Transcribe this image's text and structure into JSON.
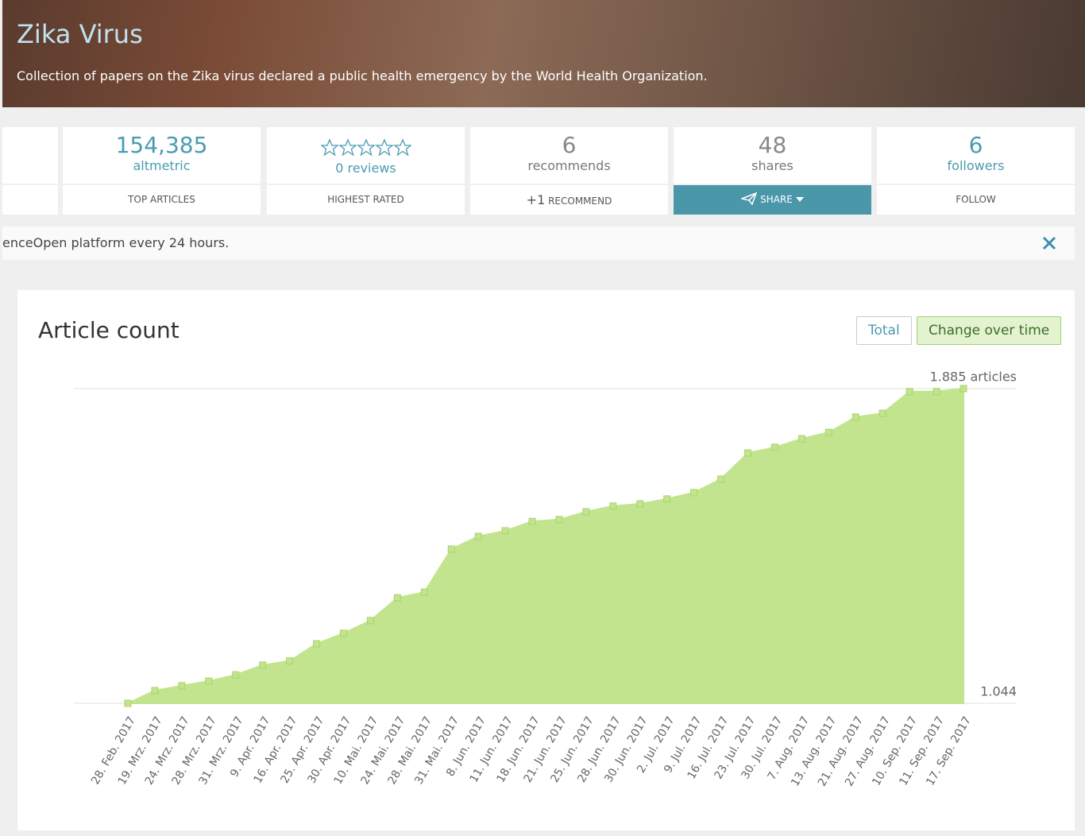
{
  "header": {
    "title": "Zika Virus",
    "description": "Collection of papers on the Zika virus declared a public health emergency by the World Health Organization."
  },
  "stats": [
    {
      "value": "154,385",
      "label": "altmetric",
      "action": "TOP ARTICLES"
    },
    {
      "label": "0 reviews",
      "action": "HIGHEST RATED"
    },
    {
      "value": "6",
      "label": "recommends",
      "action_prefix": "+1",
      "action": "RECOMMEND"
    },
    {
      "value": "48",
      "label": "shares",
      "action": "SHARE"
    },
    {
      "value": "6",
      "label": "followers",
      "action": "FOLLOW"
    }
  ],
  "notice": {
    "text": "enceOpen platform every 24 hours."
  },
  "chart_controls": [
    "Total",
    "Change over time"
  ],
  "chart_data": {
    "type": "area",
    "title": "Article count",
    "color": "#c3e48e",
    "grid": true,
    "categories": [
      "28. Feb. 2017",
      "19. Mrz. 2017",
      "24. Mrz. 2017",
      "28. Mrz. 2017",
      "31. Mrz. 2017",
      "9. Apr. 2017",
      "16. Apr. 2017",
      "25. Apr. 2017",
      "30. Apr. 2017",
      "10. Mai. 2017",
      "24. Mai. 2017",
      "28. Mai. 2017",
      "31. Mai. 2017",
      "8. Jun. 2017",
      "11. Jun. 2017",
      "18. Jun. 2017",
      "21. Jun. 2017",
      "25. Jun. 2017",
      "28. Jun. 2017",
      "30. Jun. 2017",
      "2. Jul. 2017",
      "9. Jul. 2017",
      "16. Jul. 2017",
      "23. Jul. 2017",
      "30. Jul. 2017",
      "7. Aug. 2017",
      "13. Aug. 2017",
      "21. Aug. 2017",
      "27. Aug. 2017",
      "10. Sep. 2017",
      "11. Sep. 2017",
      "17. Sep. 2017"
    ],
    "values": [
      1044,
      1078,
      1091,
      1103,
      1120,
      1146,
      1157,
      1203,
      1231,
      1265,
      1326,
      1341,
      1456,
      1490,
      1505,
      1530,
      1535,
      1556,
      1571,
      1577,
      1590,
      1607,
      1643,
      1713,
      1728,
      1751,
      1768,
      1809,
      1819,
      1877,
      1877,
      1885
    ],
    "ylim": [
      1044,
      1885
    ],
    "yticks": [
      {
        "value": 1044,
        "label": "1.044"
      },
      {
        "value": 1885,
        "label": "1.885 articles"
      }
    ]
  }
}
